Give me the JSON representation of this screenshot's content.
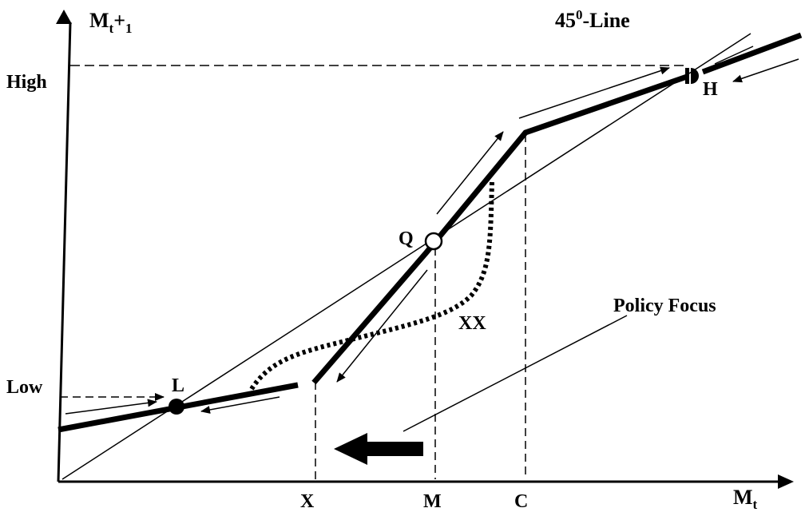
{
  "axes": {
    "y_label": "M",
    "y_label_sub": "t",
    "y_label_suffix": "+",
    "y_label_suffix_sub": "1",
    "x_label": "M",
    "x_label_sub": "t",
    "y_ticks": {
      "high": "High",
      "low": "Low"
    },
    "x_ticks": {
      "x": "X",
      "m": "M",
      "c": "C"
    }
  },
  "line_45": {
    "label": "45",
    "label_sup": "0",
    "label_suffix": "-Line"
  },
  "points": {
    "low_equilibrium": "L",
    "mid_equilibrium": "Q",
    "high_equilibrium": "H"
  },
  "curve_labels": {
    "policy_curve": "XX",
    "policy_focus": "Policy Focus"
  }
}
